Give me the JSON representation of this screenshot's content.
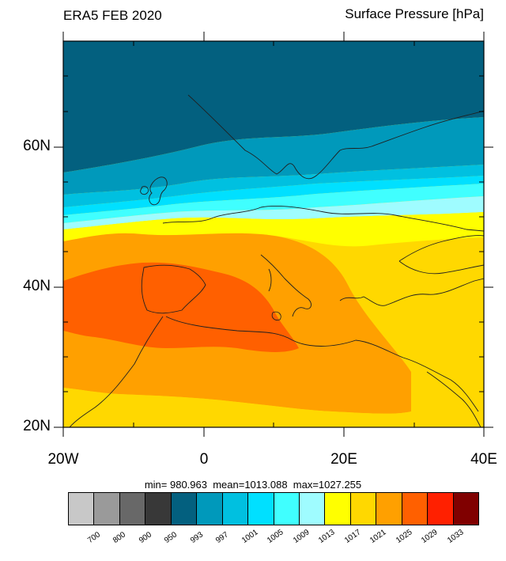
{
  "title_left": "ERA5 FEB 2020",
  "title_right": "Surface Pressure [hPa]",
  "y_ticks": [
    "60N",
    "40N",
    "20N"
  ],
  "x_ticks": [
    "20W",
    "0",
    "20E",
    "40E"
  ],
  "stats_text": "min= 980.963  mean=1013.088  max=1027.255",
  "colorbar": {
    "levels": [
      "700",
      "800",
      "900",
      "950",
      "993",
      "997",
      "1001",
      "1005",
      "1009",
      "1013",
      "1017",
      "1021",
      "1025",
      "1029",
      "1033"
    ],
    "colors": [
      "#c8c8c8",
      "#9a9a9a",
      "#686868",
      "#383838",
      "#03607f",
      "#0099bb",
      "#00c0e0",
      "#00e0ff",
      "#40ffff",
      "#9ffcff",
      "#ffff00",
      "#ffd800",
      "#ffa000",
      "#ff6000",
      "#ff2000",
      "#800000"
    ]
  },
  "map": {
    "lat_range": [
      20,
      75
    ],
    "lon_range": [
      -20,
      40
    ],
    "bands_color_order": [
      "#03607f",
      "#0099bb",
      "#00c0e0",
      "#00e0ff",
      "#40ffff",
      "#9ffcff",
      "#ffff00",
      "#ffd800",
      "#ffa000",
      "#ff6000"
    ]
  }
}
